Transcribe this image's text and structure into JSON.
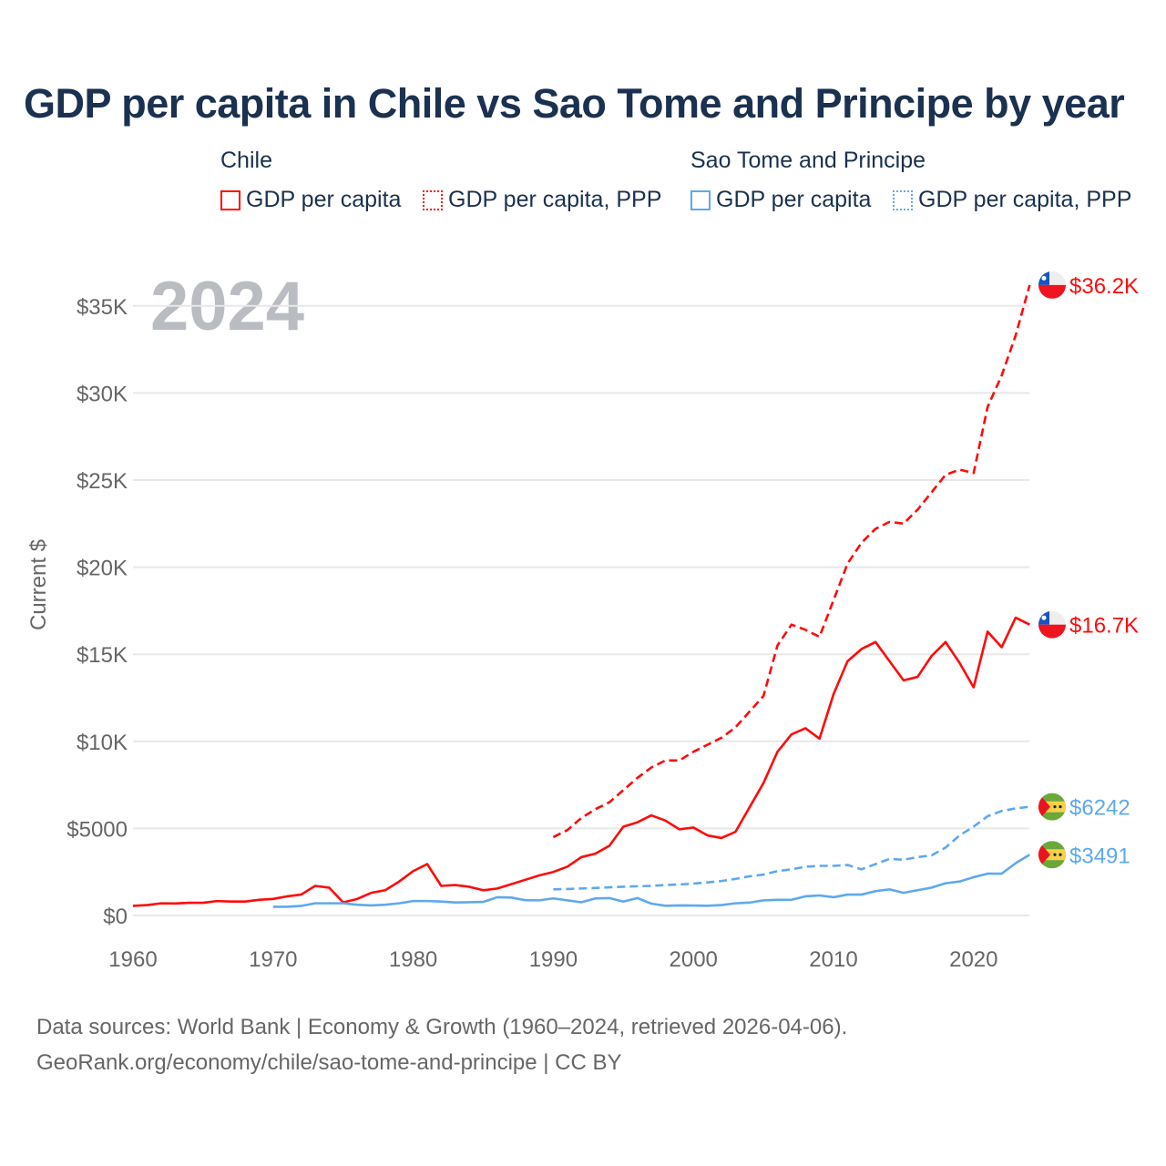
{
  "title": "GDP per capita in Chile vs Sao Tome and Principe by year",
  "legend": {
    "groups": [
      {
        "name": "Chile",
        "items": [
          "GDP per capita",
          "GDP per capita, PPP"
        ]
      },
      {
        "name": "Sao Tome and Principe",
        "items": [
          "GDP per capita",
          "GDP per capita, PPP"
        ]
      }
    ]
  },
  "colors": {
    "chile": "#ff0a0a",
    "stp": "#5ea8ef",
    "title": "#1b3150",
    "year": "#b9bcc0"
  },
  "year_watermark": "2024",
  "end_labels": [
    "$36.2K",
    "$16.7K",
    "$6242",
    "$3491"
  ],
  "flag_icons": [
    "chile-flag",
    "chile-flag",
    "sao-tome-flag",
    "sao-tome-flag"
  ],
  "source": [
    "Data sources: World Bank | Economy & Growth (1960–2024, retrieved 2026-04-06).",
    "GeoRank.org/economy/chile/sao-tome-and-principe | CC BY"
  ],
  "chart_data": {
    "type": "line",
    "title": "GDP per capita in Chile vs Sao Tome and Principe by year",
    "xlabel": "",
    "ylabel": "Current $",
    "xlim": [
      1960,
      2024
    ],
    "ylim": [
      0,
      37000
    ],
    "xticks": [
      1960,
      1970,
      1980,
      1990,
      2000,
      2010,
      2020
    ],
    "xtick_labels": [
      "1960",
      "1970",
      "1980",
      "1990",
      "2000",
      "2010",
      "2020"
    ],
    "yticks": [
      0,
      5000,
      10000,
      15000,
      20000,
      25000,
      30000,
      35000
    ],
    "ytick_labels": [
      "$0",
      "$5000",
      "$10K",
      "$15K",
      "$20K",
      "$25K",
      "$30K",
      "$35K"
    ],
    "grid": true,
    "legend_position": "top",
    "series": [
      {
        "name": "Chile GDP per capita",
        "start": 1960,
        "dashed": false,
        "color": "#ff0a0a",
        "values": [
          550,
          600,
          700,
          690,
          730,
          730,
          830,
          800,
          800,
          900,
          950,
          1100,
          1200,
          1700,
          1600,
          750,
          950,
          1300,
          1450,
          1950,
          2550,
          2950,
          1700,
          1750,
          1650,
          1450,
          1550,
          1800,
          2050,
          2300,
          2500,
          2800,
          3350,
          3550,
          4000,
          5100,
          5350,
          5750,
          5450,
          4950,
          5050,
          4600,
          4450,
          4800,
          6200,
          7600,
          9400,
          10400,
          10750,
          10150,
          12700,
          14600,
          15300,
          15700,
          14600,
          13500,
          13700,
          14900,
          15700,
          14500,
          13100,
          16300,
          15400,
          17100,
          16700
        ]
      },
      {
        "name": "Chile GDP per capita, PPP",
        "start": 1990,
        "dashed": true,
        "color": "#ff0a0a",
        "values": [
          4500,
          4900,
          5600,
          6100,
          6500,
          7200,
          7900,
          8500,
          8900,
          8900,
          9400,
          9800,
          10200,
          10800,
          11700,
          12600,
          15500,
          16700,
          16400,
          16000,
          18100,
          20200,
          21400,
          22200,
          22600,
          22500,
          23300,
          24300,
          25300,
          25600,
          25400,
          29200,
          31000,
          33300,
          36200
        ]
      },
      {
        "name": "Sao Tome and Principe GDP per capita",
        "start": 1970,
        "dashed": false,
        "color": "#5ea8ef",
        "values": [
          500,
          500,
          550,
          700,
          700,
          700,
          620,
          580,
          620,
          700,
          830,
          830,
          800,
          750,
          760,
          780,
          1050,
          1030,
          880,
          870,
          980,
          870,
          760,
          980,
          1000,
          800,
          1000,
          680,
          560,
          580,
          570,
          560,
          600,
          700,
          740,
          870,
          900,
          900,
          1100,
          1150,
          1050,
          1200,
          1200,
          1400,
          1500,
          1300,
          1450,
          1600,
          1850,
          1950,
          2200,
          2400,
          2400,
          3000,
          3491
        ]
      },
      {
        "name": "Sao Tome and Principe GDP per capita, PPP",
        "start": 1990,
        "dashed": true,
        "color": "#5ea8ef",
        "values": [
          1500,
          1520,
          1550,
          1580,
          1620,
          1650,
          1680,
          1700,
          1750,
          1780,
          1830,
          1900,
          1980,
          2100,
          2250,
          2350,
          2550,
          2650,
          2800,
          2850,
          2850,
          2900,
          2650,
          2950,
          3250,
          3200,
          3350,
          3450,
          3900,
          4600,
          5100,
          5700,
          6000,
          6150,
          6242
        ]
      }
    ]
  }
}
